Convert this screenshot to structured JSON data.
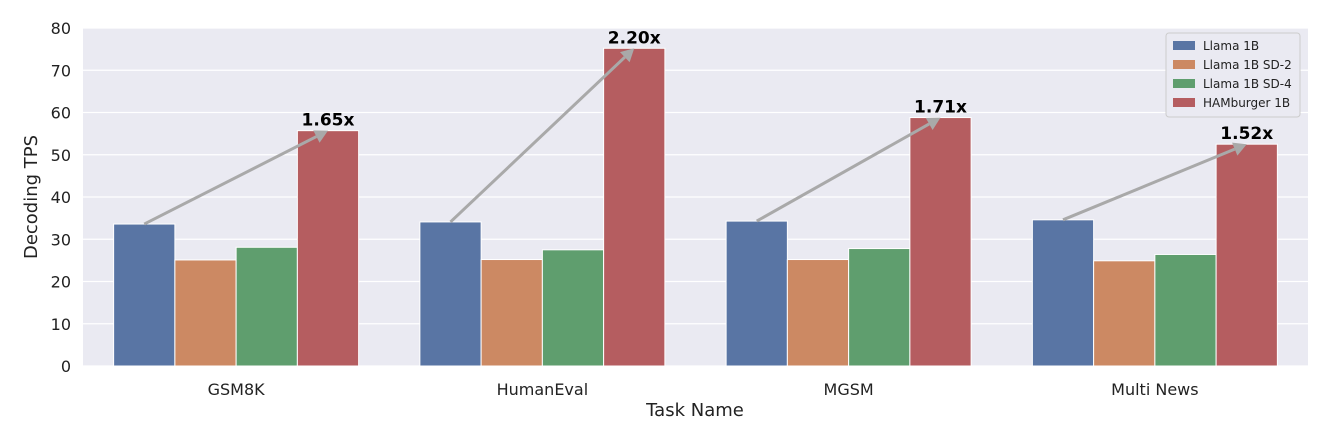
{
  "chart_data": {
    "type": "bar",
    "categories": [
      "GSM8K",
      "HumanEval",
      "MGSM",
      "Multi News"
    ],
    "series": [
      {
        "name": "Llama 1B",
        "color": "#5975a4",
        "values": [
          33.6,
          34.1,
          34.3,
          34.6
        ]
      },
      {
        "name": "Llama 1B SD-2",
        "color": "#cc8963",
        "values": [
          25.1,
          25.2,
          25.2,
          24.9
        ]
      },
      {
        "name": "Llama 1B SD-4",
        "color": "#5f9e6e",
        "values": [
          28.1,
          27.5,
          27.8,
          26.4
        ]
      },
      {
        "name": "HAMburger 1B",
        "color": "#b55d60",
        "values": [
          55.7,
          75.2,
          58.8,
          52.5
        ]
      }
    ],
    "annotations": [
      {
        "category": "GSM8K",
        "label": "1.65x"
      },
      {
        "category": "HumanEval",
        "label": "2.20x"
      },
      {
        "category": "MGSM",
        "label": "1.71x"
      },
      {
        "category": "Multi News",
        "label": "1.52x"
      }
    ],
    "xlabel": "Task Name",
    "ylabel": "Decoding TPS",
    "ylim": [
      0,
      80
    ],
    "yticks": [
      0,
      10,
      20,
      30,
      40,
      50,
      60,
      70,
      80
    ],
    "grid": true,
    "legend_position": "top-right",
    "plot_background": "#eaeaf2",
    "arrow_color": "#a9a9a9"
  }
}
